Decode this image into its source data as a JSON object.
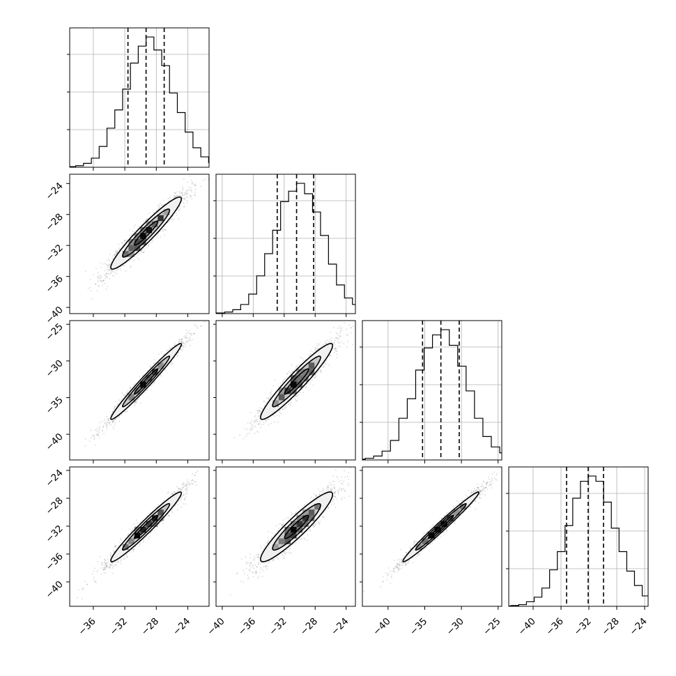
{
  "chart_data": {
    "type": "corner",
    "params": [
      {
        "mean": -29.3,
        "sd": 2.6,
        "range": [
          -39.0,
          -21.3
        ],
        "ticks": [
          -36,
          -32,
          -28,
          -24
        ],
        "quantiles": [
          -31.6,
          -29.3,
          -27.0
        ]
      },
      {
        "mean": -30.4,
        "sd": 2.7,
        "range": [
          -40.8,
          -22.8
        ],
        "ticks": [
          -40,
          -36,
          -32,
          -28,
          -24
        ],
        "quantiles": [
          -32.9,
          -30.4,
          -28.2
        ]
      },
      {
        "mean": -32.8,
        "sd": 3.0,
        "range": [
          -43.5,
          -24.5
        ],
        "ticks": [
          -40,
          -35,
          -30,
          -25
        ],
        "quantiles": [
          -35.3,
          -32.8,
          -30.3
        ]
      },
      {
        "mean": -32.1,
        "sd": 2.9,
        "range": [
          -43.5,
          -23.5
        ],
        "ticks": [
          -40,
          -36,
          -32,
          -28,
          -24
        ],
        "quantiles": [
          -35.2,
          -32.1,
          -29.9
        ]
      }
    ],
    "histograms": [
      [
        0.002,
        0.005,
        0.012,
        0.03,
        0.07,
        0.16,
        0.3,
        0.44,
        0.6,
        0.8,
        0.93,
        1.0,
        0.9,
        0.78,
        0.57,
        0.42,
        0.27,
        0.15,
        0.08,
        0.035,
        0.015,
        0.006
      ],
      [
        0.002,
        0.005,
        0.012,
        0.03,
        0.07,
        0.15,
        0.29,
        0.46,
        0.64,
        0.86,
        0.94,
        1.0,
        0.92,
        0.78,
        0.6,
        0.38,
        0.22,
        0.12,
        0.07,
        0.035,
        0.015,
        0.006
      ],
      [
        0.002,
        0.006,
        0.013,
        0.03,
        0.068,
        0.15,
        0.32,
        0.47,
        0.69,
        0.86,
        0.96,
        1.0,
        0.88,
        0.72,
        0.53,
        0.32,
        0.18,
        0.1,
        0.055,
        0.025,
        0.012,
        0.005
      ],
      [
        0.002,
        0.006,
        0.013,
        0.035,
        0.07,
        0.14,
        0.28,
        0.42,
        0.62,
        0.83,
        0.96,
        1.0,
        0.96,
        0.8,
        0.6,
        0.42,
        0.27,
        0.16,
        0.08,
        0.04,
        0.018,
        0.008
      ]
    ],
    "correlations": [
      [
        1.0,
        0.95,
        0.98,
        0.97
      ],
      [
        0.95,
        1.0,
        0.95,
        0.93
      ],
      [
        0.98,
        0.95,
        1.0,
        0.985
      ],
      [
        0.97,
        0.93,
        0.985,
        1.0
      ]
    ],
    "contour_levels_sigma": [
      0.5,
      1.0,
      1.5
    ],
    "grid": true,
    "xlabel": "",
    "ylabel": "",
    "title": ""
  }
}
